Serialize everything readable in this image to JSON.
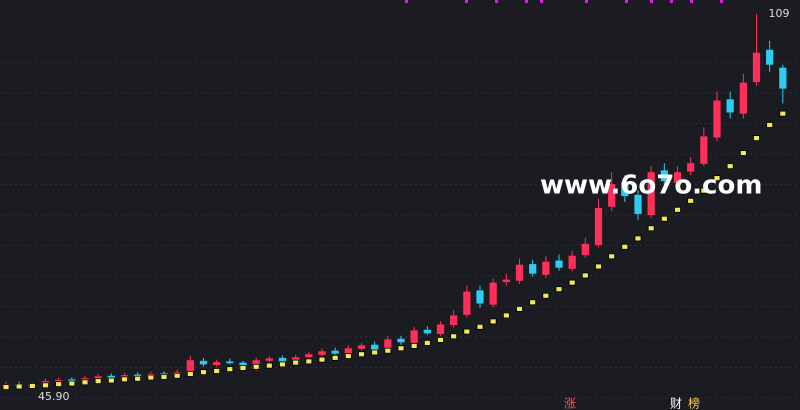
{
  "chart_data": {
    "type": "candlestick",
    "up_color": "#ff2f5a",
    "down_color": "#2ccdf2",
    "ma_color": "#f2e85c",
    "ylim": [
      43,
      110
    ],
    "grid": true,
    "categories": [
      null,
      null,
      null,
      null,
      null,
      null,
      null,
      null,
      null,
      null,
      null,
      null,
      null,
      null,
      null,
      null,
      null,
      null,
      null,
      null,
      null,
      null,
      null,
      null,
      null,
      null,
      null,
      null,
      null,
      null,
      null,
      null,
      null,
      null,
      null,
      null,
      null,
      null,
      null,
      null,
      null,
      null,
      null,
      null,
      null,
      null,
      null,
      null,
      null,
      null,
      null,
      null,
      null,
      null,
      null,
      null,
      null,
      null,
      null,
      null
    ],
    "open": [
      46.0,
      46.6,
      46.3,
      46.1,
      47.0,
      47.3,
      46.9,
      47.4,
      47.9,
      47.2,
      48.1,
      47.5,
      48.3,
      47.9,
      48.6,
      50.4,
      49.7,
      50.3,
      50.1,
      49.0,
      50.4,
      50.9,
      50.2,
      51.0,
      51.4,
      52.1,
      51.5,
      52.4,
      53.1,
      52.1,
      54.1,
      53.4,
      55.6,
      54.9,
      56.4,
      58.1,
      62.2,
      59.8,
      63.6,
      63.8,
      66.6,
      64.8,
      67.2,
      65.8,
      68.1,
      69.8,
      76.2,
      80.3,
      78.2,
      74.8,
      82.3,
      80.2,
      82.1,
      83.4,
      87.8,
      94.2,
      91.8,
      97.1,
      102.5,
      99.5
    ],
    "high": [
      46.9,
      46.9,
      46.6,
      47.4,
      47.6,
      47.6,
      47.9,
      48.2,
      48.3,
      48.4,
      48.5,
      48.6,
      48.7,
      48.9,
      51.3,
      50.9,
      50.6,
      50.8,
      50.4,
      50.9,
      51.2,
      51.3,
      51.4,
      51.9,
      52.5,
      52.6,
      53.0,
      53.4,
      53.6,
      54.6,
      54.6,
      56.1,
      56.2,
      57.0,
      58.9,
      63.0,
      63.0,
      64.2,
      65.0,
      67.5,
      67.3,
      68.0,
      68.2,
      68.8,
      71.0,
      77.5,
      82.0,
      81.5,
      79.0,
      83.0,
      83.5,
      83.0,
      84.5,
      89.5,
      95.5,
      95.5,
      98.5,
      108.5,
      104.0,
      100.0
    ],
    "low": [
      45.7,
      45.9,
      45.8,
      45.9,
      46.7,
      46.5,
      46.6,
      47.1,
      47.0,
      47.0,
      47.3,
      47.2,
      47.7,
      47.6,
      48.3,
      49.4,
      49.4,
      49.8,
      48.7,
      48.7,
      50.1,
      50.0,
      49.9,
      50.7,
      51.1,
      51.3,
      51.2,
      52.1,
      51.9,
      51.8,
      53.1,
      53.1,
      54.7,
      54.6,
      56.0,
      57.6,
      59.3,
      59.3,
      63.0,
      63.3,
      64.5,
      64.3,
      65.5,
      65.4,
      67.7,
      69.4,
      75.5,
      77.0,
      74.0,
      74.3,
      79.8,
      79.8,
      81.5,
      83.0,
      87.2,
      91.0,
      91.0,
      96.5,
      98.8,
      93.5
    ],
    "close": [
      46.5,
      46.2,
      46.0,
      47.0,
      47.2,
      46.8,
      47.5,
      47.8,
      47.3,
      48.0,
      47.6,
      48.2,
      48.0,
      48.5,
      50.5,
      49.8,
      50.2,
      50.0,
      49.0,
      50.5,
      50.8,
      50.3,
      51.0,
      51.5,
      52.0,
      51.6,
      52.5,
      53.0,
      52.2,
      54.0,
      53.5,
      55.5,
      55.0,
      56.5,
      58.0,
      62.0,
      60.0,
      63.5,
      64.0,
      66.5,
      65.0,
      67.0,
      66.0,
      68.0,
      70.0,
      76.0,
      80.0,
      78.0,
      75.0,
      82.0,
      80.5,
      82.0,
      83.5,
      88.0,
      94.0,
      92.0,
      97.0,
      102.0,
      100.0,
      96.0
    ],
    "ma": [
      46.0,
      46.1,
      46.2,
      46.3,
      46.5,
      46.6,
      46.8,
      47.0,
      47.1,
      47.3,
      47.4,
      47.6,
      47.7,
      47.9,
      48.2,
      48.5,
      48.7,
      49.0,
      49.2,
      49.4,
      49.6,
      49.8,
      50.1,
      50.3,
      50.6,
      50.9,
      51.2,
      51.5,
      51.8,
      52.1,
      52.5,
      52.9,
      53.4,
      53.9,
      54.5,
      55.3,
      56.1,
      57.0,
      58.0,
      59.1,
      60.2,
      61.3,
      62.4,
      63.5,
      64.7,
      66.2,
      67.9,
      69.5,
      70.9,
      72.6,
      74.2,
      75.7,
      77.2,
      78.9,
      81.0,
      83.0,
      85.2,
      87.7,
      89.9,
      91.8
    ],
    "low_label": "45.90",
    "high_label": "109",
    "watermark": "www.6o7o.com",
    "markers": [
      "涨",
      "财",
      "榜"
    ]
  }
}
